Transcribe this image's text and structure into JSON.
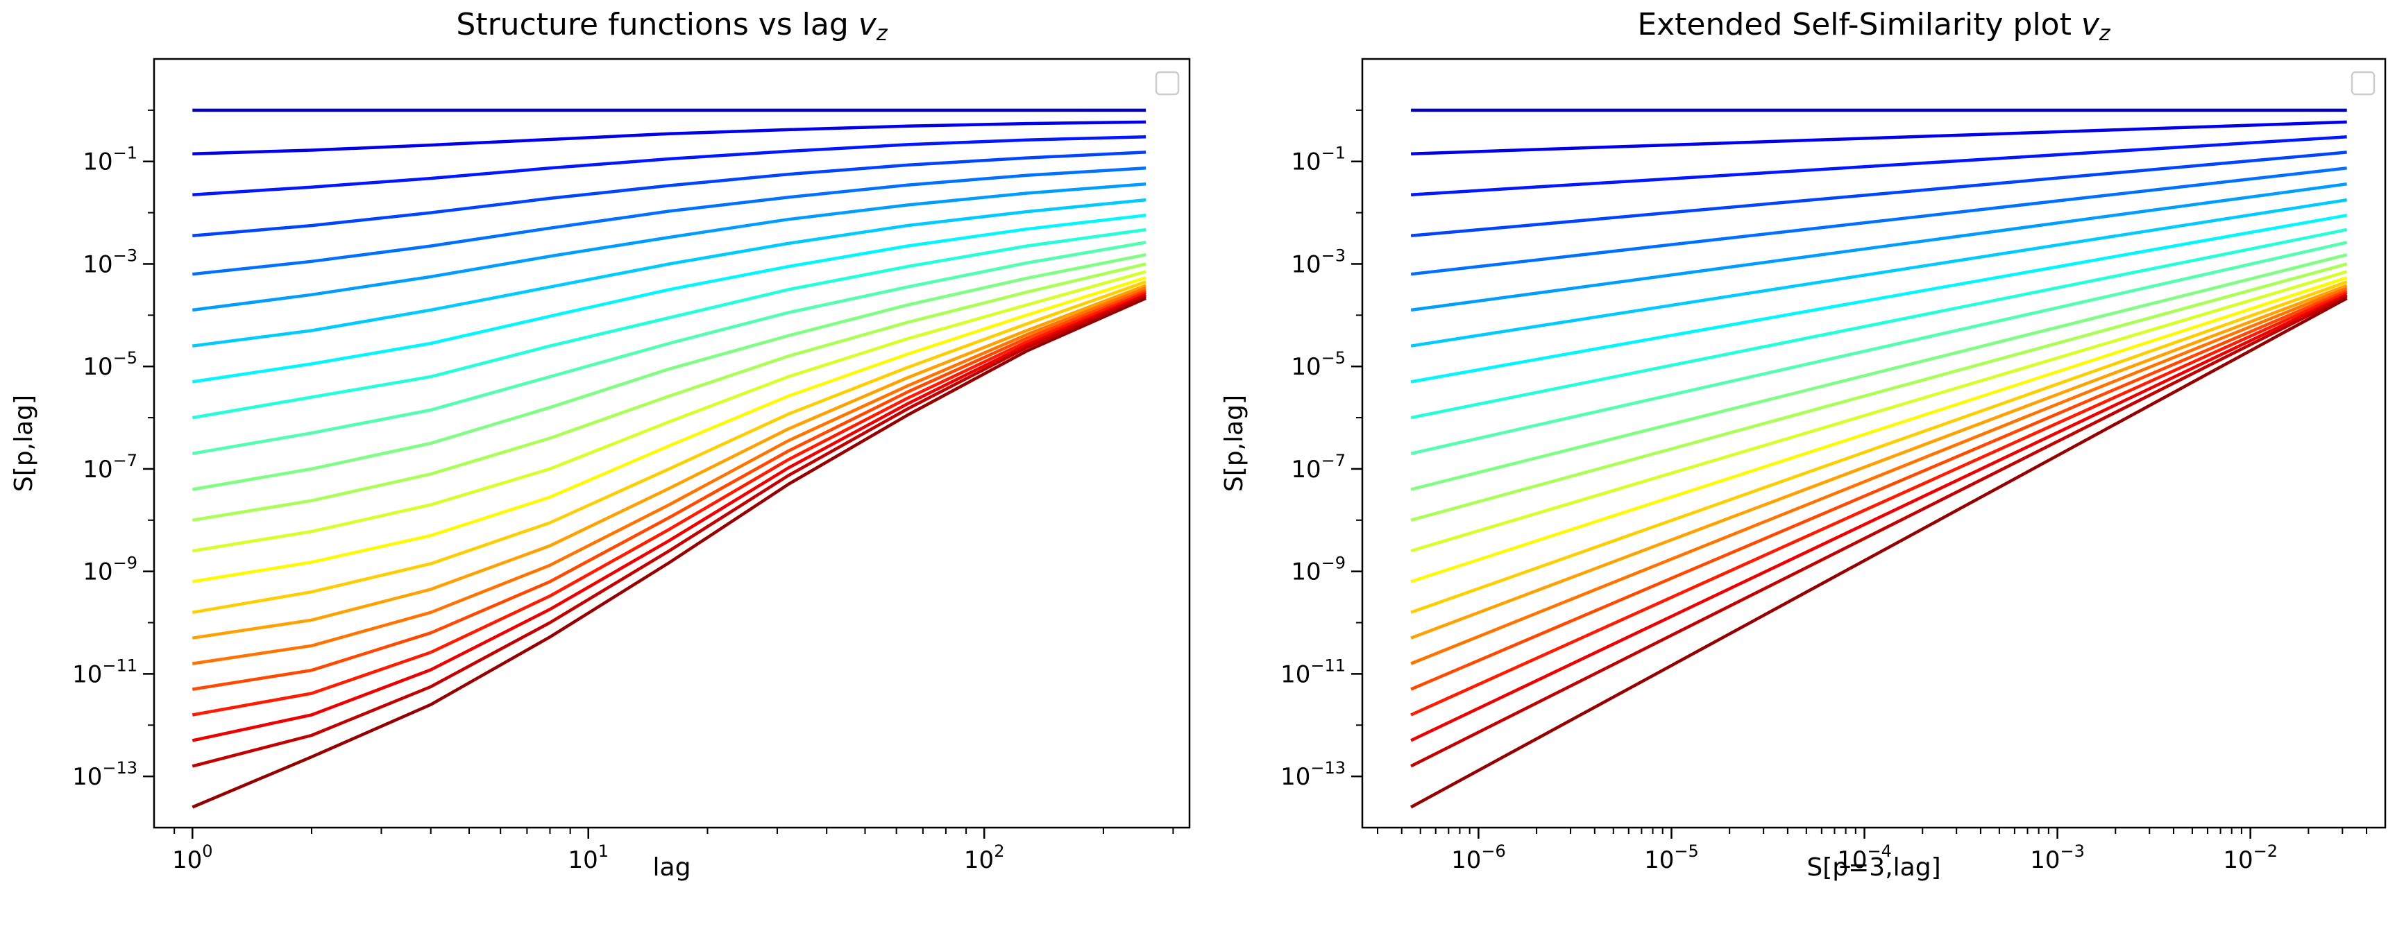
{
  "chart_data": [
    {
      "type": "line",
      "title": "Structure functions vs lag",
      "title_math": "v",
      "title_math_sub": "z",
      "xlabel": "lag",
      "ylabel": "S[p,lag]",
      "xscale": "log",
      "yscale": "log",
      "xlim": [
        0.8,
        330
      ],
      "ylim": [
        1e-14,
        10
      ],
      "x_ticks": [
        {
          "base": "10",
          "exp": "0",
          "value": 1
        },
        {
          "base": "10",
          "exp": "1",
          "value": 10
        },
        {
          "base": "10",
          "exp": "2",
          "value": 100
        }
      ],
      "y_ticks": [
        {
          "base": "10",
          "exp": "−1",
          "value": 0.1
        },
        {
          "base": "10",
          "exp": "−3",
          "value": 0.001
        },
        {
          "base": "10",
          "exp": "−5",
          "value": 1e-05
        },
        {
          "base": "10",
          "exp": "−7",
          "value": 1e-07
        },
        {
          "base": "10",
          "exp": "−9",
          "value": 1e-09
        },
        {
          "base": "10",
          "exp": "−11",
          "value": 1e-11
        },
        {
          "base": "10",
          "exp": "−13",
          "value": 1e-13
        }
      ],
      "legend": "top-right (empty)",
      "grid": false,
      "colormap": "jet",
      "series_count": 22,
      "series_note": "One curve per moment order p = 0..21; x = lag = 1, 2, 4, ..., 256 (9 points); log10 of S at each lag.",
      "x": [
        1,
        2,
        4,
        8,
        16,
        32,
        64,
        128,
        256
      ],
      "series_log10": [
        [
          0.0,
          0.0,
          0.0,
          0.0,
          0.0,
          0.0,
          0.0,
          0.0,
          0.0
        ],
        [
          -0.85,
          -0.78,
          -0.68,
          -0.57,
          -0.46,
          -0.38,
          -0.31,
          -0.26,
          -0.23
        ],
        [
          -1.65,
          -1.5,
          -1.33,
          -1.13,
          -0.95,
          -0.8,
          -0.67,
          -0.58,
          -0.52
        ],
        [
          -2.45,
          -2.25,
          -2.0,
          -1.72,
          -1.47,
          -1.25,
          -1.07,
          -0.93,
          -0.82
        ],
        [
          -3.2,
          -2.95,
          -2.65,
          -2.3,
          -1.97,
          -1.7,
          -1.46,
          -1.27,
          -1.13
        ],
        [
          -3.9,
          -3.6,
          -3.25,
          -2.85,
          -2.48,
          -2.13,
          -1.85,
          -1.62,
          -1.44
        ],
        [
          -4.6,
          -4.3,
          -3.9,
          -3.45,
          -3.0,
          -2.6,
          -2.25,
          -1.98,
          -1.75
        ],
        [
          -5.3,
          -4.95,
          -4.55,
          -4.02,
          -3.5,
          -3.05,
          -2.65,
          -2.32,
          -2.05
        ],
        [
          -6.0,
          -5.6,
          -5.2,
          -4.6,
          -4.05,
          -3.5,
          -3.05,
          -2.65,
          -2.33
        ],
        [
          -6.7,
          -6.3,
          -5.85,
          -5.2,
          -4.55,
          -3.95,
          -3.45,
          -2.98,
          -2.58
        ],
        [
          -7.4,
          -7.0,
          -6.5,
          -5.8,
          -5.05,
          -4.4,
          -3.8,
          -3.28,
          -2.82
        ],
        [
          -8.0,
          -7.62,
          -7.1,
          -6.4,
          -5.58,
          -4.8,
          -4.14,
          -3.55,
          -3.0
        ],
        [
          -8.6,
          -8.22,
          -7.7,
          -7.0,
          -6.08,
          -5.2,
          -4.46,
          -3.8,
          -3.15
        ],
        [
          -9.2,
          -8.82,
          -8.3,
          -7.55,
          -6.55,
          -5.58,
          -4.76,
          -4.0,
          -3.27
        ],
        [
          -9.8,
          -9.4,
          -8.85,
          -8.05,
          -7.0,
          -5.93,
          -5.02,
          -4.17,
          -3.35
        ],
        [
          -10.3,
          -9.95,
          -9.35,
          -8.5,
          -7.38,
          -6.22,
          -5.22,
          -4.3,
          -3.42
        ],
        [
          -10.8,
          -10.45,
          -9.8,
          -8.88,
          -7.7,
          -6.45,
          -5.38,
          -4.38,
          -3.47
        ],
        [
          -11.3,
          -10.93,
          -10.2,
          -9.2,
          -7.95,
          -6.65,
          -5.5,
          -4.45,
          -3.52
        ],
        [
          -11.8,
          -11.38,
          -10.58,
          -9.48,
          -8.18,
          -6.82,
          -5.62,
          -4.52,
          -3.56
        ],
        [
          -12.3,
          -11.8,
          -10.92,
          -9.74,
          -8.4,
          -6.98,
          -5.73,
          -4.58,
          -3.6
        ],
        [
          -12.8,
          -12.2,
          -11.25,
          -10.0,
          -8.6,
          -7.13,
          -5.83,
          -4.63,
          -3.63
        ],
        [
          -13.6,
          -12.62,
          -11.6,
          -10.28,
          -8.83,
          -7.3,
          -5.95,
          -4.7,
          -3.67
        ]
      ]
    },
    {
      "type": "line",
      "title": "Extended Self-Similarity plot",
      "title_math": "v",
      "title_math_sub": "z",
      "xlabel": "S[p=3,lag]",
      "ylabel": "S[p,lag]",
      "xscale": "log",
      "yscale": "log",
      "xlim": [
        2.5e-07,
        0.05
      ],
      "ylim": [
        1e-14,
        10
      ],
      "x_ticks": [
        {
          "base": "10",
          "exp": "−6",
          "value": 1e-06
        },
        {
          "base": "10",
          "exp": "−5",
          "value": 1e-05
        },
        {
          "base": "10",
          "exp": "−4",
          "value": 0.0001
        },
        {
          "base": "10",
          "exp": "−3",
          "value": 0.001
        },
        {
          "base": "10",
          "exp": "−2",
          "value": 0.01
        }
      ],
      "y_ticks": [
        {
          "base": "10",
          "exp": "−1",
          "value": 0.1
        },
        {
          "base": "10",
          "exp": "−3",
          "value": 0.001
        },
        {
          "base": "10",
          "exp": "−5",
          "value": 1e-05
        },
        {
          "base": "10",
          "exp": "−7",
          "value": 1e-07
        },
        {
          "base": "10",
          "exp": "−9",
          "value": 1e-09
        },
        {
          "base": "10",
          "exp": "−11",
          "value": 1e-11
        },
        {
          "base": "10",
          "exp": "−13",
          "value": 1e-13
        }
      ],
      "legend": "top-right (empty)",
      "grid": false,
      "colormap": "jet",
      "series_count": 22,
      "series_note": "Curve p: log10 S_p(lag) plotted against x_log10 = log10 S_3(lag); nearly straight lines whose endpoints are given.",
      "x_log10": [
        -6.35,
        -5.67,
        -4.98,
        -4.3,
        -3.62,
        -2.93,
        -2.25,
        -1.57,
        -1.5
      ],
      "series_log10_start": [
        0.0,
        -0.85,
        -1.65,
        -2.45,
        -3.2,
        -3.9,
        -4.6,
        -5.3,
        -6.0,
        -6.7,
        -7.4,
        -8.0,
        -8.6,
        -9.2,
        -9.8,
        -10.3,
        -10.8,
        -11.3,
        -11.8,
        -12.3,
        -12.8,
        -13.6
      ],
      "series_log10_end": [
        0.0,
        -0.23,
        -0.52,
        -0.82,
        -1.13,
        -1.44,
        -1.75,
        -2.05,
        -2.33,
        -2.58,
        -2.82,
        -3.0,
        -3.15,
        -3.27,
        -3.35,
        -3.42,
        -3.47,
        -3.52,
        -3.56,
        -3.6,
        -3.63,
        -3.67
      ]
    }
  ]
}
